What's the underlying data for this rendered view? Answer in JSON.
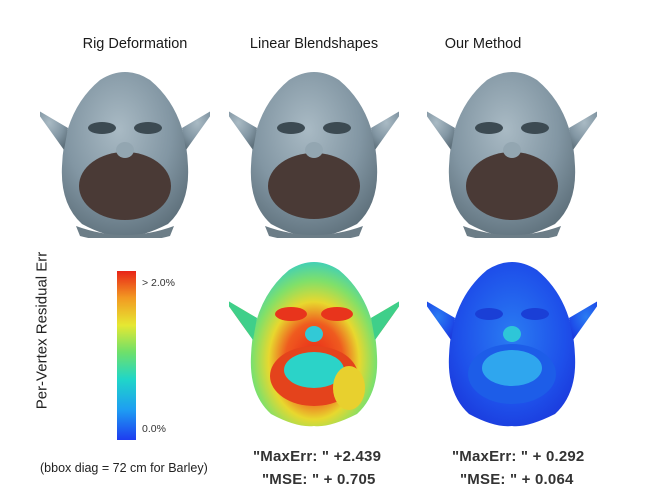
{
  "columns": {
    "rig": "Rig Deformation",
    "linear": "Linear Blendshapes",
    "ours": "Our Method"
  },
  "colorbar": {
    "axis_label": "Per-Vertex Residual Err",
    "max_label": "> 2.0%",
    "min_label": "0.0%"
  },
  "footnote": "(bbox diag = 72 cm for Barley)",
  "metrics": {
    "linear_maxerr": "\"MaxErr: \" +2.439",
    "linear_mse": "\"MSE: \" + 0.705",
    "ours_maxerr": "\"MaxErr: \" + 0.292",
    "ours_mse": "\"MSE: \" + 0.064"
  },
  "colors": {
    "gray_skin": "#8296a3",
    "mouth": "#4a3a36",
    "err_high": "#e82418",
    "err_low": "#1e3cf0"
  }
}
